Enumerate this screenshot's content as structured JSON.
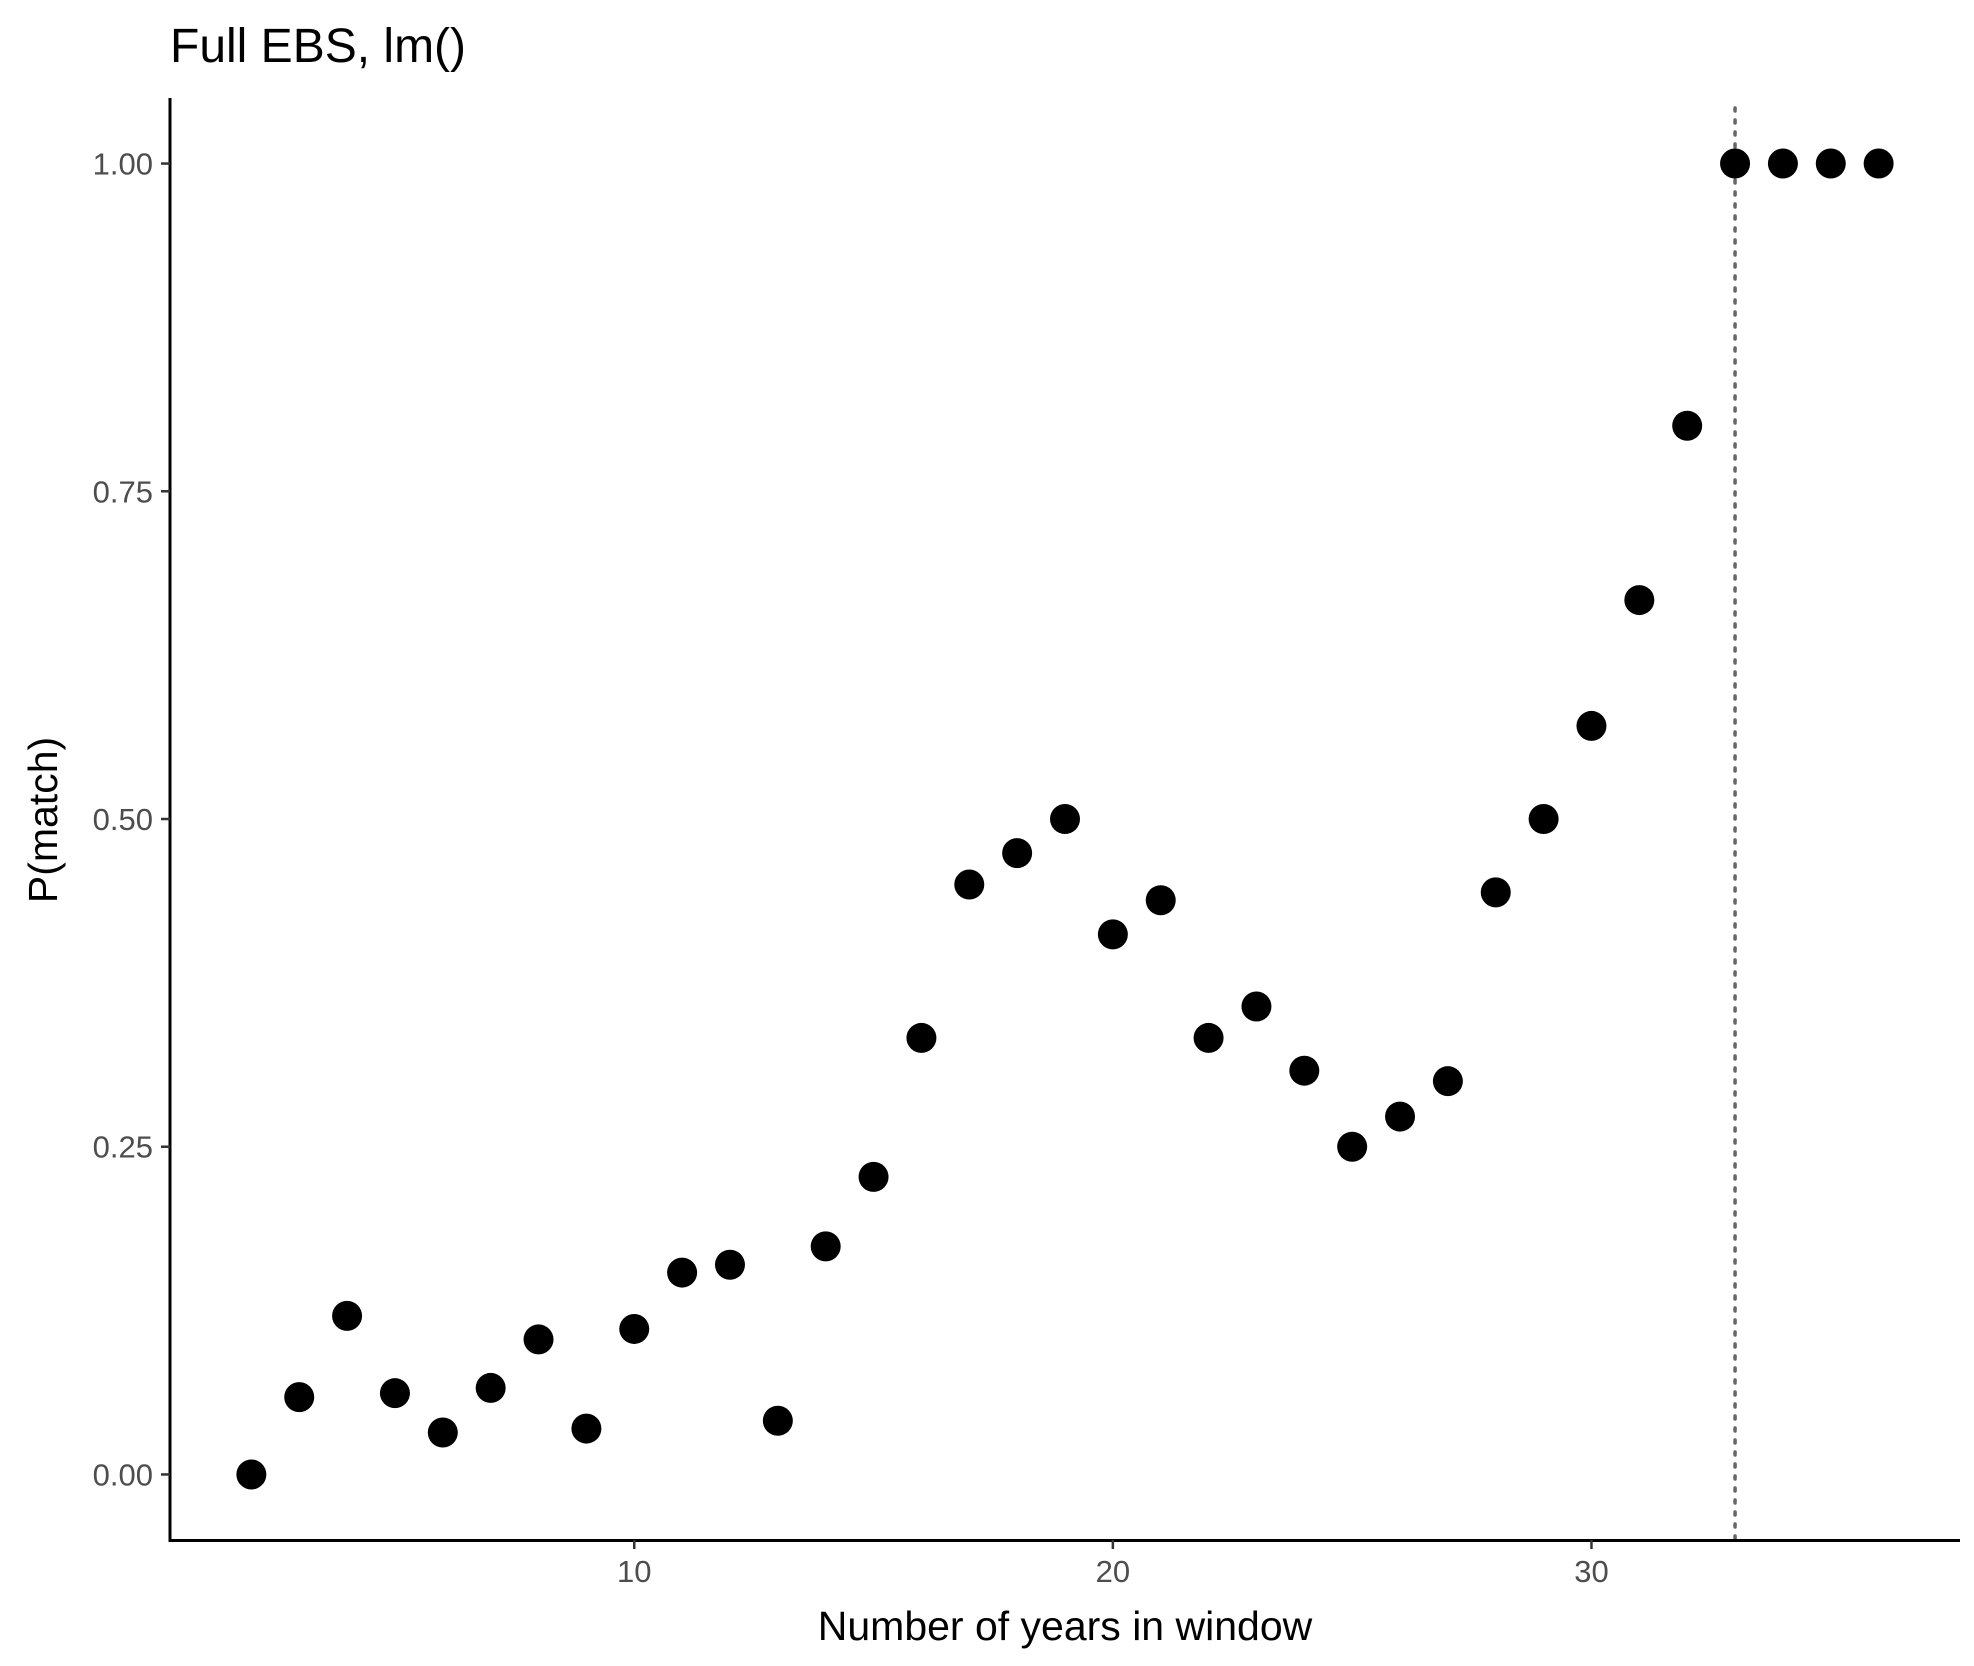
{
  "chart_data": {
    "type": "scatter",
    "title": "Full EBS, lm()",
    "xlabel": "Number of years in window",
    "ylabel": "P(match)",
    "x": [
      2,
      3,
      4,
      5,
      6,
      7,
      8,
      9,
      10,
      11,
      12,
      13,
      14,
      15,
      16,
      17,
      18,
      19,
      20,
      21,
      22,
      23,
      24,
      25,
      26,
      27,
      28,
      29,
      30,
      31,
      32,
      33,
      34,
      35,
      36
    ],
    "y": [
      0.0,
      0.059,
      0.121,
      0.062,
      0.032,
      0.066,
      0.103,
      0.035,
      0.111,
      0.154,
      0.16,
      0.041,
      0.174,
      0.227,
      0.333,
      0.45,
      0.474,
      0.5,
      0.412,
      0.438,
      0.333,
      0.357,
      0.308,
      0.25,
      0.273,
      0.3,
      0.444,
      0.5,
      0.571,
      0.667,
      0.8,
      1.0,
      1.0,
      1.0,
      1.0
    ],
    "xlim": [
      0.3,
      37.7
    ],
    "ylim": [
      -0.05,
      1.05
    ],
    "x_ticks": [
      10,
      20,
      30
    ],
    "x_tick_labels": [
      "10",
      "20",
      "30"
    ],
    "y_ticks": [
      0,
      0.25,
      0.5,
      0.75,
      1.0
    ],
    "y_tick_labels": [
      "0.00",
      "0.25",
      "0.50",
      "0.75",
      "1.00"
    ],
    "vline_x": 33,
    "grid": false,
    "legend": "none",
    "point_color": "#000000",
    "vline_color": "#666666"
  }
}
